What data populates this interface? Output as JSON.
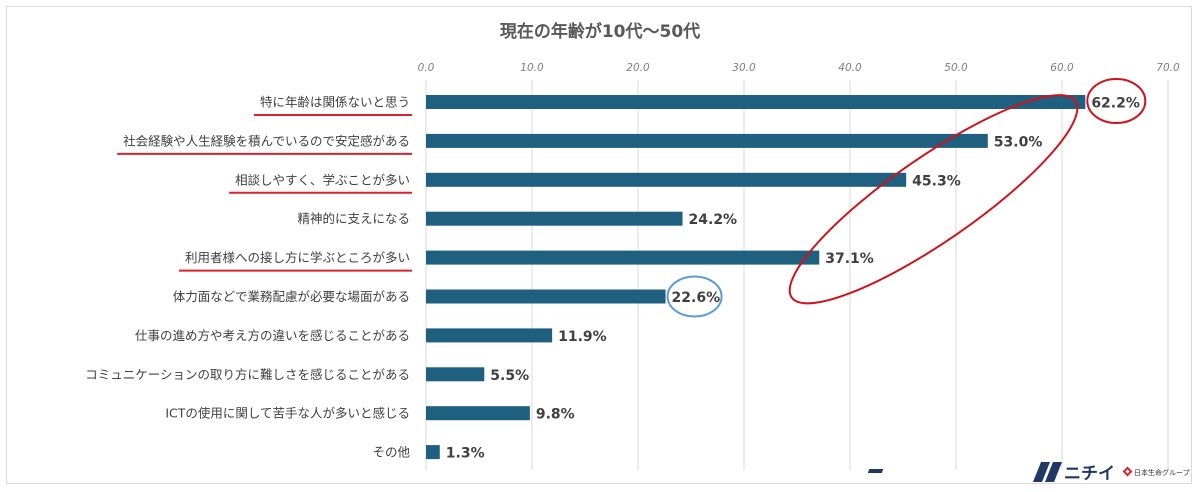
{
  "chart_data": {
    "type": "bar",
    "orientation": "horizontal",
    "title": "現在の年齢が10代～50代",
    "categories": [
      "特に年齢は関係ないと思う",
      "社会経験や人生経験を積んでいるので安定感がある",
      "相談しやすく、学ぶことが多い",
      "精神的に支えになる",
      "利用者様への接し方に学ぶところが多い",
      "体力面などで業務配慮が必要な場面がある",
      "仕事の進め方や考え方の違いを感じることがある",
      "コミュニケーションの取り方に難しさを感じることがある",
      "ICTの使用に関して苦手な人が多いと感じる",
      "その他"
    ],
    "values": [
      62.2,
      53.0,
      45.3,
      24.2,
      37.1,
      22.6,
      11.9,
      5.5,
      9.8,
      1.3
    ],
    "value_labels": [
      "62.2%",
      "53.0%",
      "45.3%",
      "24.2%",
      "37.1%",
      "22.6%",
      "11.9%",
      "5.5%",
      "9.8%",
      "1.3%"
    ],
    "xlim": [
      0,
      70
    ],
    "x_ticks": [
      "0.0",
      "10.0",
      "20.0",
      "30.0",
      "40.0",
      "50.0",
      "60.0",
      "70.0"
    ],
    "underlined_categories": [
      0,
      1,
      2,
      4
    ],
    "highlight_red_circle": [
      0
    ],
    "highlight_red_ellipse_group": [
      1,
      2,
      4
    ],
    "highlight_blue_circle": [
      5
    ],
    "grid": true,
    "legend": "none",
    "colors": {
      "bar": "#1f5f7f",
      "grid": "#d9d9d9",
      "underline": "#d9232e",
      "highlight_red": "#d0121b",
      "highlight_blue": "#5b9bd5"
    }
  },
  "logo": {
    "brand": "ニチイ",
    "sub": "日本生命グループ",
    "colors": {
      "mark": "#1f3864",
      "accent": "#d9232e"
    }
  }
}
